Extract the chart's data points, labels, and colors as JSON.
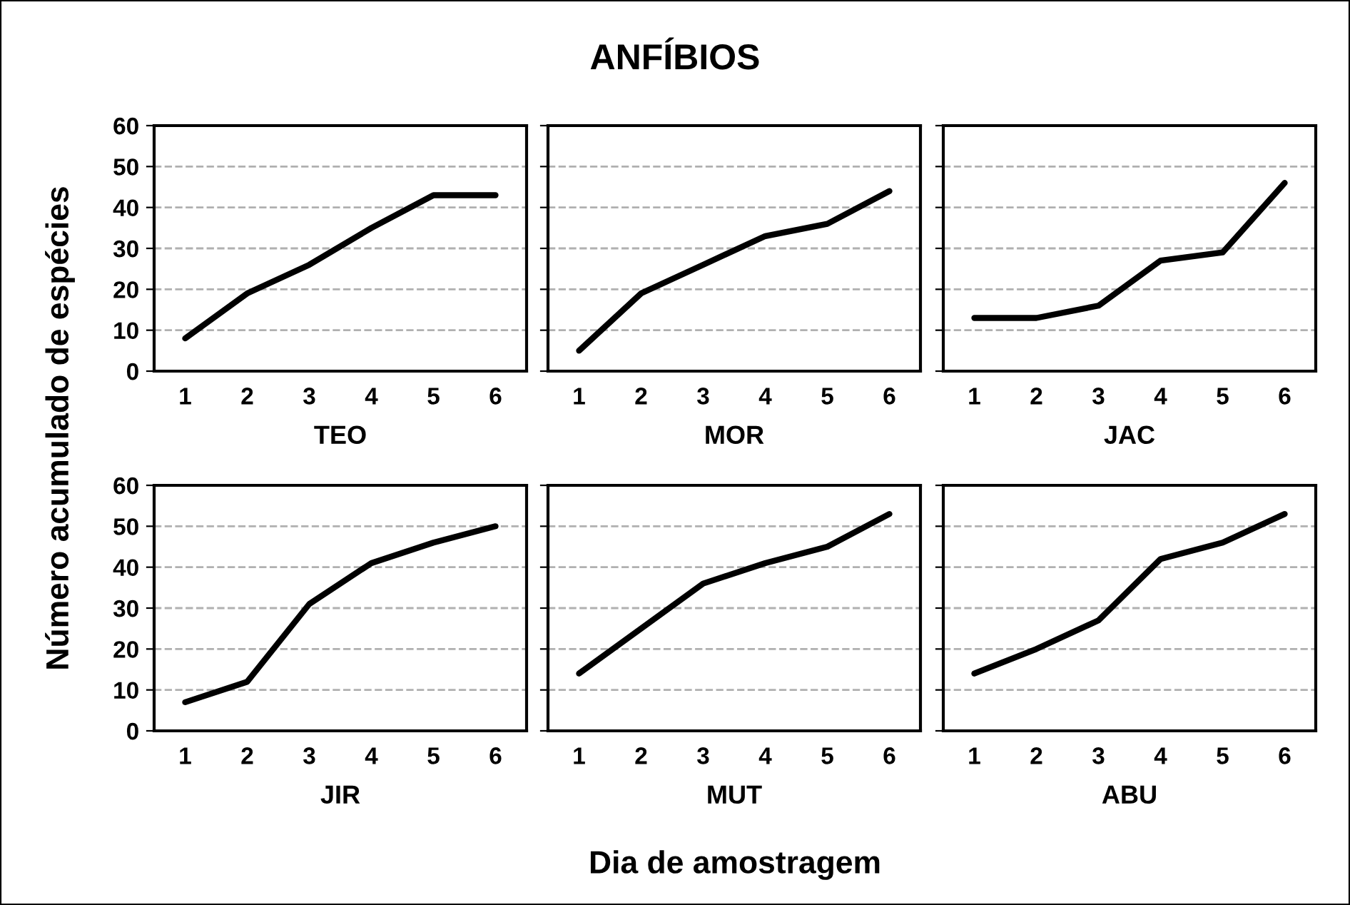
{
  "chart_data": [
    {
      "type": "line",
      "ylabel": "Número acumulado de espécies",
      "xlabel": "TEO",
      "categories": [
        "1",
        "2",
        "3",
        "4",
        "5",
        "6"
      ],
      "series": [
        {
          "color": "#000000",
          "values": [
            8,
            19,
            26,
            35,
            43,
            43
          ]
        }
      ],
      "ylim": [
        0,
        60
      ],
      "yticks": [
        0,
        10,
        20,
        30,
        40,
        50,
        60
      ],
      "grid": "y",
      "legend": false
    },
    {
      "type": "line",
      "title": "ANFÍBIOS",
      "xlabel": "MOR",
      "categories": [
        "1",
        "2",
        "3",
        "4",
        "5",
        "6"
      ],
      "series": [
        {
          "color": "#000000",
          "values": [
            5,
            19,
            26,
            33,
            36,
            44
          ]
        }
      ],
      "ylim": [
        0,
        60
      ],
      "yticks": [
        0,
        10,
        20,
        30,
        40,
        50,
        60
      ],
      "grid": "y",
      "legend": false,
      "tick_labels": "x"
    },
    {
      "type": "line",
      "xlabel": "JAC",
      "categories": [
        "1",
        "2",
        "3",
        "4",
        "5",
        "6"
      ],
      "series": [
        {
          "color": "#000000",
          "values": [
            13,
            13,
            16,
            27,
            29,
            46
          ]
        }
      ],
      "ylim": [
        0,
        60
      ],
      "yticks": [
        0,
        10,
        20,
        30,
        40,
        50,
        60
      ],
      "grid": "y",
      "legend": false,
      "tick_labels": "x"
    },
    {
      "type": "line",
      "xlabel": "JIR",
      "categories": [
        "1",
        "2",
        "3",
        "4",
        "5",
        "6"
      ],
      "series": [
        {
          "color": "#000000",
          "values": [
            7,
            12,
            31,
            41,
            46,
            50
          ]
        }
      ],
      "ylim": [
        0,
        60
      ],
      "yticks": [
        0,
        10,
        20,
        30,
        40,
        50,
        60
      ],
      "grid": "y",
      "legend": false
    },
    {
      "type": "line",
      "annotations": [
        "Dia de amostragem"
      ],
      "xlabel": "MUT",
      "categories": [
        "1",
        "2",
        "3",
        "4",
        "5",
        "6"
      ],
      "series": [
        {
          "color": "#000000",
          "values": [
            14,
            25,
            36,
            41,
            45,
            53
          ]
        }
      ],
      "ylim": [
        0,
        60
      ],
      "yticks": [
        0,
        10,
        20,
        30,
        40,
        50,
        60
      ],
      "grid": "y",
      "legend": false,
      "tick_labels": "x"
    },
    {
      "type": "line",
      "xlabel": "ABU",
      "categories": [
        "1",
        "2",
        "3",
        "4",
        "5",
        "6"
      ],
      "series": [
        {
          "color": "#000000",
          "values": [
            14,
            20,
            27,
            42,
            46,
            53
          ]
        }
      ],
      "ylim": [
        0,
        60
      ],
      "yticks": [
        0,
        10,
        20,
        30,
        40,
        50,
        60
      ],
      "grid": "y",
      "legend": false,
      "tick_labels": "x"
    }
  ]
}
